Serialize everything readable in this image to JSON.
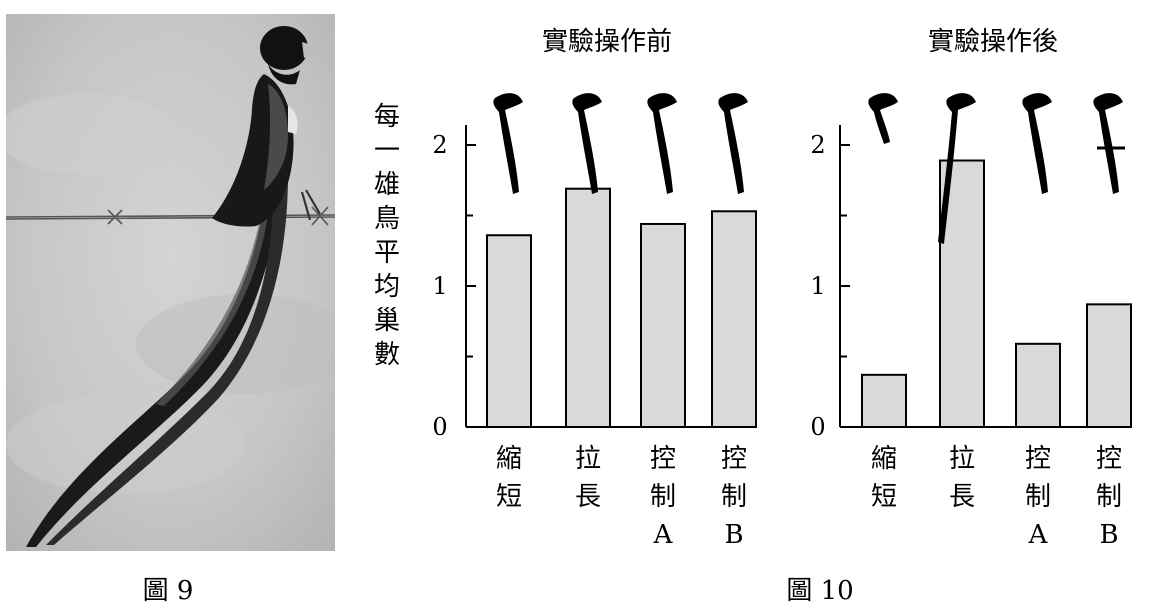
{
  "figure9_caption": "圖 9",
  "figure10_caption": "圖 10",
  "ylabel_chars": [
    "每",
    "一",
    "雄",
    "鳥",
    "平",
    "均",
    "巢",
    "數"
  ],
  "chart_data": [
    {
      "type": "bar",
      "title": "實驗操作前",
      "categories": [
        [
          "縮",
          "短"
        ],
        [
          "拉",
          "長"
        ],
        [
          "控",
          "制",
          "A"
        ],
        [
          "控",
          "制",
          "B"
        ]
      ],
      "values": [
        1.36,
        1.69,
        1.44,
        1.53
      ],
      "ylabel": "每一雄鳥平均巢數",
      "ylim": [
        0,
        2.1
      ],
      "yticks": [
        "0",
        "1",
        "2"
      ],
      "bar_color": "#d9d9d9"
    },
    {
      "type": "bar",
      "title": "實驗操作後",
      "categories": [
        [
          "縮",
          "短"
        ],
        [
          "拉",
          "長"
        ],
        [
          "控",
          "制",
          "A"
        ],
        [
          "控",
          "制",
          "B"
        ]
      ],
      "values": [
        0.37,
        1.89,
        0.59,
        0.87
      ],
      "ylabel": "每一雄鳥平均巢數",
      "ylim": [
        0,
        2.1
      ],
      "yticks": [
        "0",
        "1",
        "2"
      ],
      "bar_color": "#d9d9d9"
    }
  ]
}
